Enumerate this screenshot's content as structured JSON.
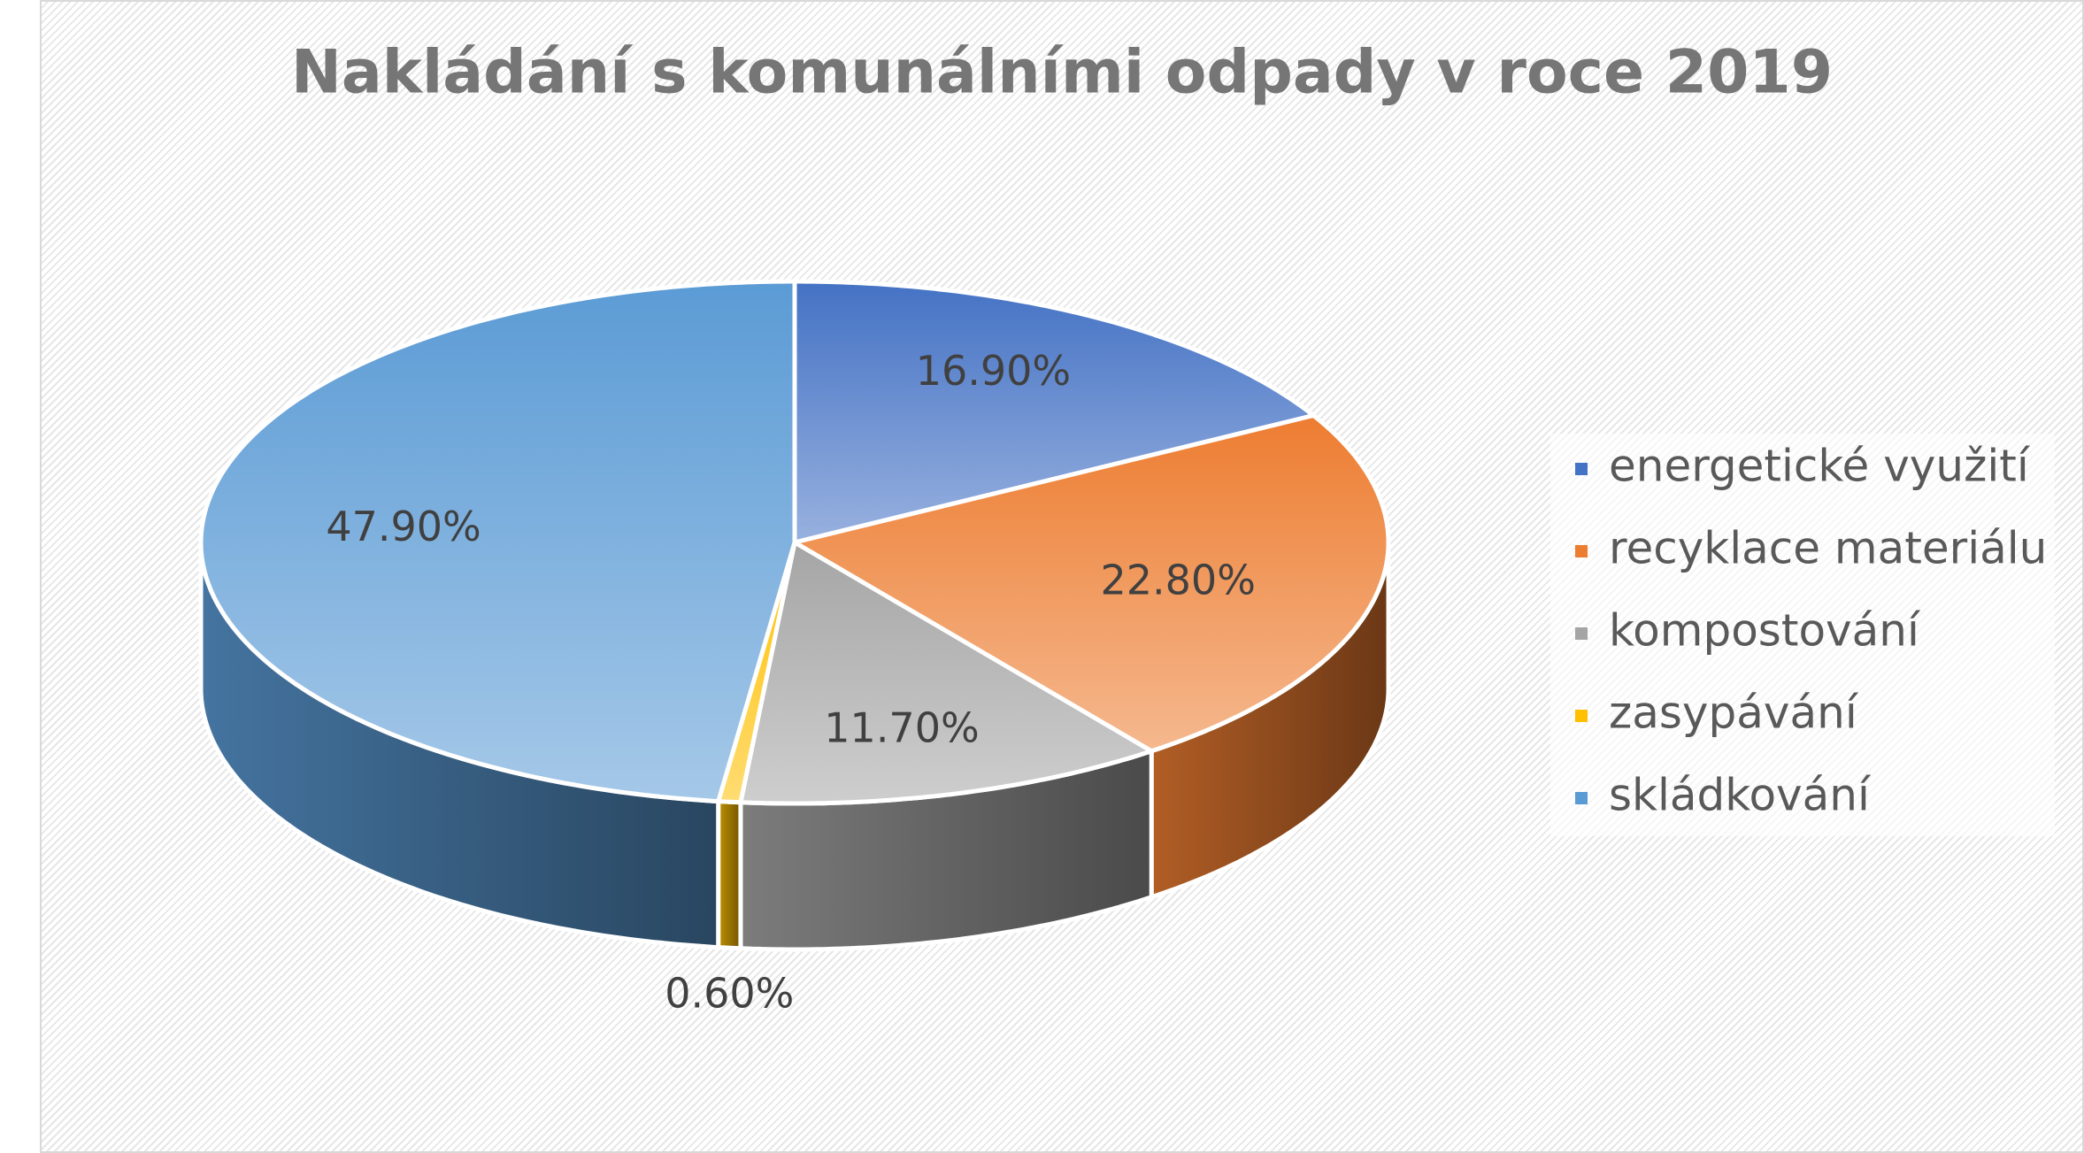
{
  "chart_data": {
    "type": "pie3d",
    "title": "Nakládání s komunálními odpady v roce 2019",
    "categories": [
      "energetické využití",
      "recyklace materiálu",
      "kompostování",
      "zasypávání",
      "skládkování"
    ],
    "values": [
      16.9,
      22.8,
      11.7,
      0.6,
      47.9
    ],
    "value_labels": [
      "16.90%",
      "22.80%",
      "11.70%",
      "0.60%",
      "47.90%"
    ],
    "colors": [
      "#4472c4",
      "#ed7d31",
      "#a5a5a5",
      "#ffc000",
      "#5b9bd5"
    ],
    "legend": "right"
  }
}
